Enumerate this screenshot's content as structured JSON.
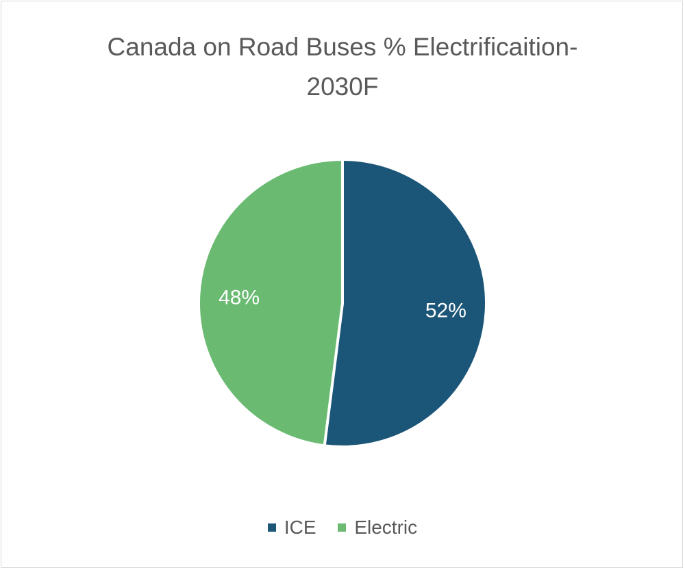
{
  "chart_data": {
    "type": "pie",
    "title": "Canada on Road Buses % Electrificaition-2030F",
    "title_lines": [
      "Canada on Road Buses % Electrificaition-",
      "2030F"
    ],
    "categories": [
      "ICE",
      "Electric"
    ],
    "values": [
      52,
      48
    ],
    "data_labels": [
      "52%",
      "48%"
    ],
    "colors": [
      "#1b5577",
      "#6aba72"
    ],
    "legend_position": "bottom",
    "start_angle": "top, clockwise"
  }
}
